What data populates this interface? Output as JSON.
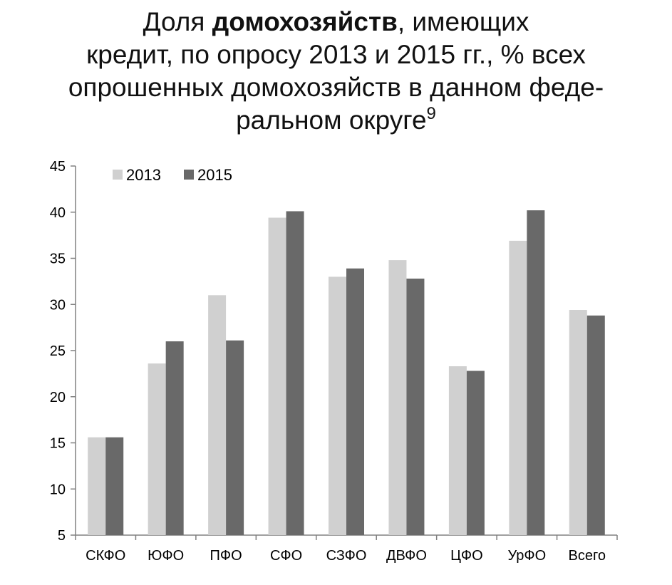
{
  "chart_data": {
    "type": "bar",
    "title": {
      "line1_pre": "Доля ",
      "line1_bold": "домохозяйств",
      "line1_post": ", имеющих",
      "line2": "кредит, по опросу 2013 и 2015 гг., % всех",
      "line3": "опрошенных домохозяйств в данном феде-",
      "line4": "ральном округе",
      "footnote": "9"
    },
    "categories": [
      "СКФО",
      "ЮФО",
      "ПФО",
      "СФО",
      "СЗФО",
      "ДВФО",
      "ЦФО",
      "УрФО",
      "Всего"
    ],
    "series": [
      {
        "name": "2013",
        "values": [
          15.6,
          23.6,
          31.0,
          39.4,
          33.0,
          34.8,
          23.3,
          36.9,
          29.4
        ],
        "color": "#d0d0d0"
      },
      {
        "name": "2015",
        "values": [
          15.6,
          26.0,
          26.1,
          40.1,
          33.9,
          32.8,
          22.8,
          40.2,
          28.8
        ],
        "color": "#696969"
      }
    ],
    "ylim": [
      5,
      45
    ],
    "yticks": [
      "5",
      "10",
      "15",
      "20",
      "25",
      "30",
      "35",
      "40",
      "45"
    ],
    "xlabel": "",
    "ylabel": "",
    "grid": false,
    "legend_position": "top-left"
  }
}
